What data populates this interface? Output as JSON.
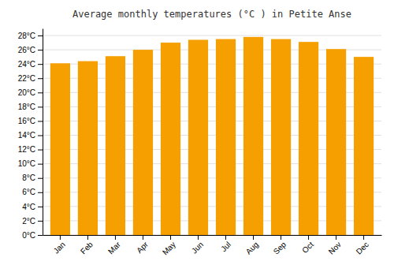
{
  "chart_data": {
    "type": "bar",
    "title": "Average monthly temperatures (°C ) in Petite Anse",
    "categories": [
      "Jan",
      "Feb",
      "Mar",
      "Apr",
      "May",
      "Jun",
      "Jul",
      "Aug",
      "Sep",
      "Oct",
      "Nov",
      "Dec"
    ],
    "values": [
      24.1,
      24.4,
      25.1,
      26.0,
      27.0,
      27.4,
      27.5,
      27.8,
      27.5,
      27.1,
      26.1,
      25.0
    ],
    "color": "#F5A000",
    "ylim": [
      0,
      29
    ],
    "yticks": [
      {
        "value": 0,
        "label": "0°C"
      },
      {
        "value": 2,
        "label": "2°C"
      },
      {
        "value": 4,
        "label": "4°C"
      },
      {
        "value": 6,
        "label": "6°C"
      },
      {
        "value": 8,
        "label": "8°C"
      },
      {
        "value": 10,
        "label": "10°C"
      },
      {
        "value": 12,
        "label": "12°C"
      },
      {
        "value": 14,
        "label": "14°C"
      },
      {
        "value": 16,
        "label": "16°C"
      },
      {
        "value": 18,
        "label": "18°C"
      },
      {
        "value": 20,
        "label": "20°C"
      },
      {
        "value": 22,
        "label": "22°C"
      },
      {
        "value": 24,
        "label": "24°C"
      },
      {
        "value": 26,
        "label": "26°C"
      },
      {
        "value": 28,
        "label": "28°C"
      }
    ],
    "grid": true
  }
}
